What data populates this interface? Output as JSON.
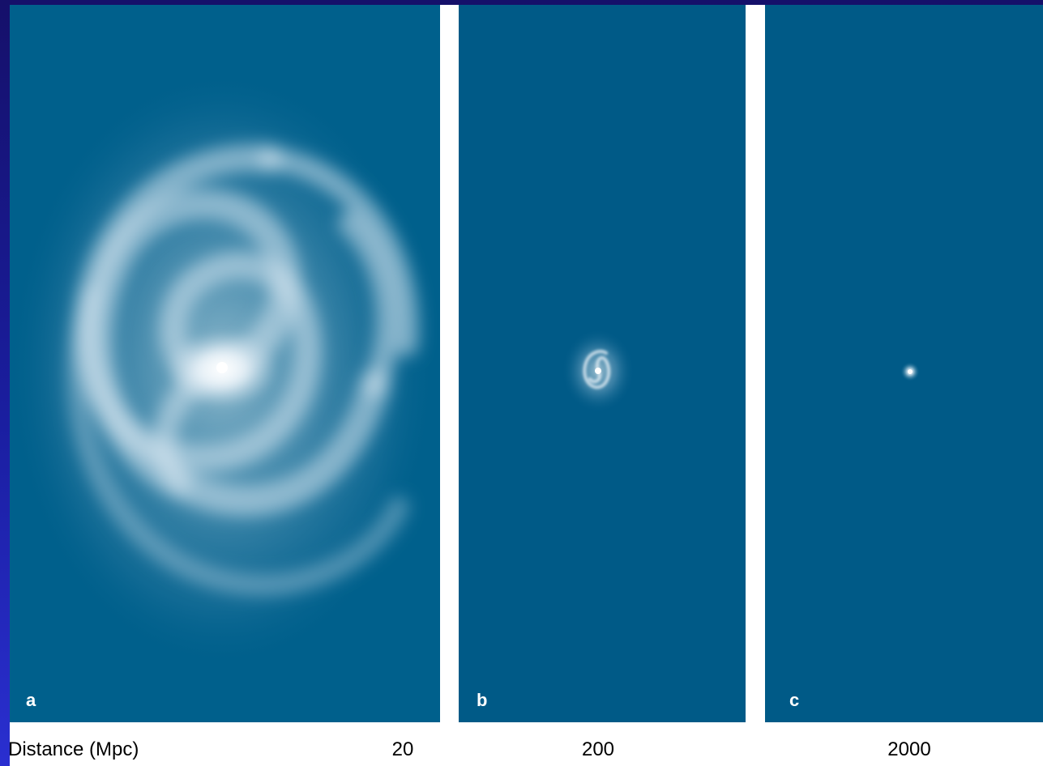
{
  "panels": [
    {
      "letter": "a",
      "distance": "20"
    },
    {
      "letter": "b",
      "distance": "200"
    },
    {
      "letter": "c",
      "distance": "2000"
    }
  ],
  "caption": {
    "label": "Distance (Mpc)"
  },
  "colors": {
    "slide_background": "#1a1ea0",
    "panel_background": "#005a87",
    "galaxy_light": "#ffffff"
  }
}
